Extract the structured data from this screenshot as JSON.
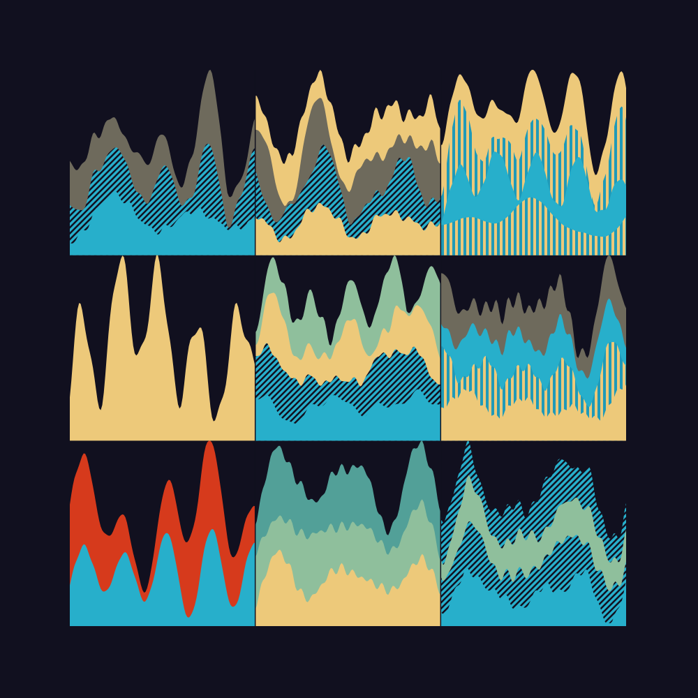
{
  "background": "#11101f",
  "palette": {
    "blue": "#27afcb",
    "yellow": "#edc97a",
    "grey": "#6e6a5c",
    "sage": "#8fbf9c",
    "teal": "#52a098",
    "red": "#d63a1c",
    "dark": "#11101f"
  },
  "grid": {
    "rows": 3,
    "cols": 3
  },
  "panels": [
    {
      "layers": [
        "blue",
        "hatch",
        "grey"
      ]
    },
    {
      "layers": [
        "yellow",
        "hatch",
        "grey",
        "yellow"
      ]
    },
    {
      "layers": [
        "stripes",
        "blue",
        "stripes",
        "yellow"
      ]
    },
    {
      "layers": [
        "yellow"
      ]
    },
    {
      "layers": [
        "blue",
        "hatch",
        "yellow",
        "sage"
      ]
    },
    {
      "layers": [
        "yellow",
        "stripes",
        "blue",
        "grey"
      ]
    },
    {
      "layers": [
        "blue",
        "red"
      ]
    },
    {
      "layers": [
        "yellow",
        "sage",
        "teal"
      ]
    },
    {
      "layers": [
        "blue",
        "hatch",
        "sage",
        "hatch"
      ]
    }
  ]
}
